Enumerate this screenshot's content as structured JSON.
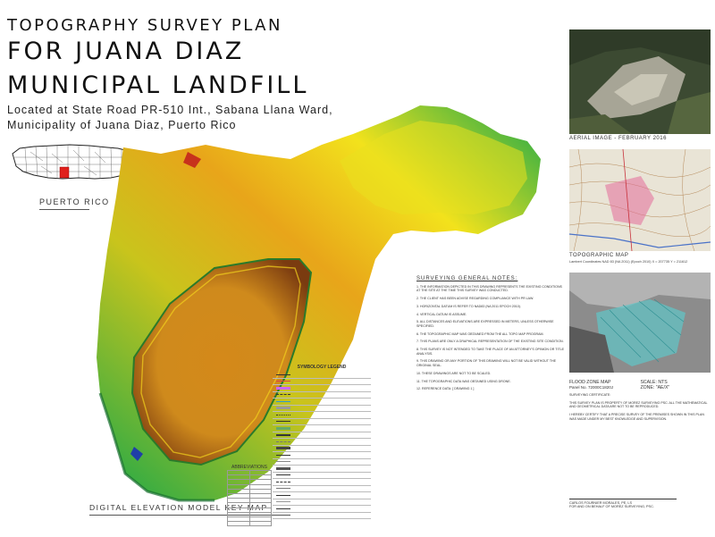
{
  "title": {
    "line1": "TOPOGRAPHY SURVEY PLAN",
    "line2": "FOR JUANA DIAZ",
    "line3": "MUNICIPAL LANDFILL"
  },
  "location": {
    "line1": "Located at State Road PR-510 Int., Sabana Llana Ward,",
    "line2": "Municipality of Juana Diaz, Puerto Rico"
  },
  "inset_map": {
    "label": "PUERTO RICO",
    "land_color": "#ffffff",
    "highlight_color": "#e0201c"
  },
  "dem": {
    "label": "DIGITAL ELEVATION MODEL KEY MAP",
    "colors": [
      "#1f3fa8",
      "#1aa84a",
      "#f2e21c",
      "#e8851a",
      "#c7321c"
    ]
  },
  "aerial": {
    "label": "AERIAL IMAGE - FEBRUARY 2016"
  },
  "topo": {
    "label": "TOPOGRAPHIC MAP",
    "sub": "Lambert Coordinates NAD 83 (NA 2011) (Epoch 2010)   X = 207735   Y = 211612"
  },
  "flood": {
    "label": "FLOOD ZONE MAP",
    "panel": "Panel No. 72000C1820J",
    "scale": "SCALE: NTS",
    "zone": "ZONE: \"AE/X\""
  },
  "notes": {
    "heading": "SURVEYING GENERAL NOTES:",
    "items": [
      "1. THE INFORMATION DEPICTED IN THIS DRAWING REPRESENTS THE EXISTING CONDITIONS AT THE SITE AT THE TIME THIS SURVEY WAS CONDUCTED.",
      "2. THE CLIENT HAS BEEN ADVISE REGARDING COMPLIANCE WITH PR LAW.",
      "3. HORIZONTAL DATUM IS REFER TO NAD83 (NA 2011 EPOCH 2010).",
      "4. VERTICAL DATUM IS ASSUME.",
      "5. ALL DISTANCES AND ELEVATIONS ARE EXPRESSED IN METERS, UNLESS OTHERWISE SPECIFIED.",
      "6. THE TOPOGRAPHIC MAP WAS OBTAINED FROM THE ALL TOPO MAP PROGRAM.",
      "7. THIS PLANS ARE ONLY A GRAPHICAL REPRESENTATION OF THE EXISTING SITE CONDITION.",
      "8. THIS SURVEY IS NOT INTENDED TO TAKE THE PLACE OF AN ATTORNEY'S OPINION OR TITLE ANALYSIS.",
      "9. THIS DRAWING OR ANY PORTION OF THIS DRAWING WILL NOT BE VALID WITHOUT THE ORIGINAL SEAL.",
      "10. THESE DRAWINGS ARE NOT TO BE SCALED.",
      "11. THE TOPOGRAPHIC DATA WAS OBTAINED USING DRONE.",
      "12. REFERENCE DATA: [ DRAWING 1 ]"
    ]
  },
  "legend": {
    "heading": "SYMBOLOGY LEGEND"
  },
  "abbreviations": {
    "heading": "ABBREVIATIONS"
  },
  "certificate": {
    "heading": "SURVEYING CERTIFICATE:",
    "p1": "THIS SURVEY PLAN IS PROPERTY OF MOREZ SURVEYING PSC. ALL THE MATHEMATICAL AND GEOMETRICAL DATA ARE NOT TO BE REPRODUCED.",
    "p2": "I HEREBY CERTIFY THAT A PRECISE SURVEY OF THE PREMISES SHOWN IN THIS PLAN WAS MADE UNDER MY BEST KNOWLEDGE AND SUPERVISION."
  },
  "signature": {
    "name": "CARLOS FOURNIER MORALES, PE, LS",
    "firm": "FOR AND ON BEHALF OF MOREZ SURVEYING, PSC."
  }
}
